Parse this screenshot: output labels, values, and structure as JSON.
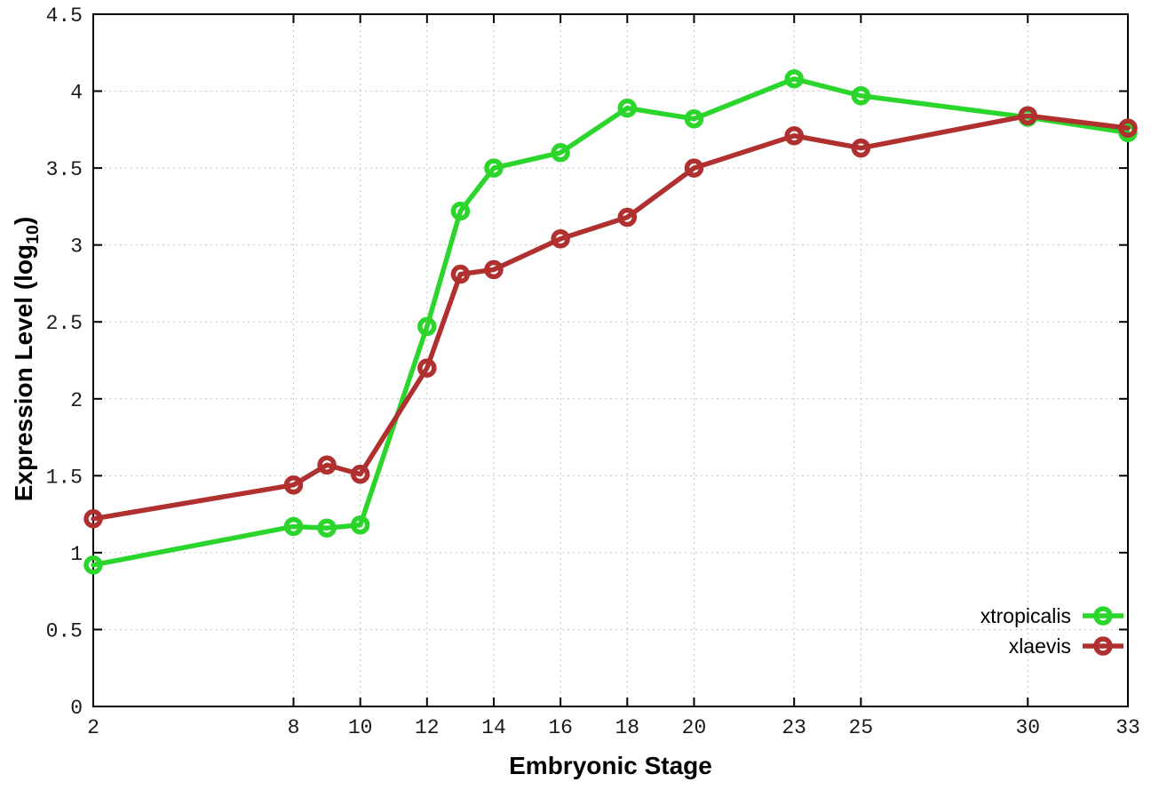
{
  "chart_data": {
    "type": "line",
    "title": "",
    "xlabel": "Embryonic Stage",
    "ylabel": {
      "prefix": "Expression Level (log",
      "sub": "10",
      "suffix": ")"
    },
    "x_ticks": [
      2,
      8,
      10,
      12,
      14,
      16,
      18,
      20,
      23,
      25,
      30,
      33
    ],
    "y_ticks": [
      0,
      0.5,
      1,
      1.5,
      2,
      2.5,
      3,
      3.5,
      4,
      4.5
    ],
    "y_tick_labels": [
      "0",
      "0.5",
      "1",
      "1.5",
      "2",
      "2.5",
      "3",
      "3.5",
      "4",
      "4.5"
    ],
    "xlim": [
      2,
      33
    ],
    "ylim": [
      0,
      4.5
    ],
    "grid": true,
    "legend_position": "bottom-right",
    "x": [
      2,
      8,
      9,
      10,
      12,
      13,
      14,
      16,
      18,
      20,
      23,
      25,
      30,
      33
    ],
    "series": [
      {
        "name": "xtropicalis",
        "color": "#2bd52b",
        "values": [
          0.92,
          1.17,
          1.16,
          1.18,
          2.47,
          3.22,
          3.5,
          3.6,
          3.89,
          3.82,
          4.08,
          3.97,
          3.83,
          3.73
        ]
      },
      {
        "name": "xlaevis",
        "color": "#b03030",
        "values": [
          1.22,
          1.44,
          1.57,
          1.51,
          2.2,
          2.81,
          2.84,
          3.04,
          3.18,
          3.5,
          3.71,
          3.63,
          3.84,
          3.76
        ]
      }
    ]
  },
  "styles": {
    "background": "#ffffff",
    "axis_color": "#000000",
    "grid_color": "#c4c4c4",
    "tick_label_color": "#1a1a1a"
  }
}
